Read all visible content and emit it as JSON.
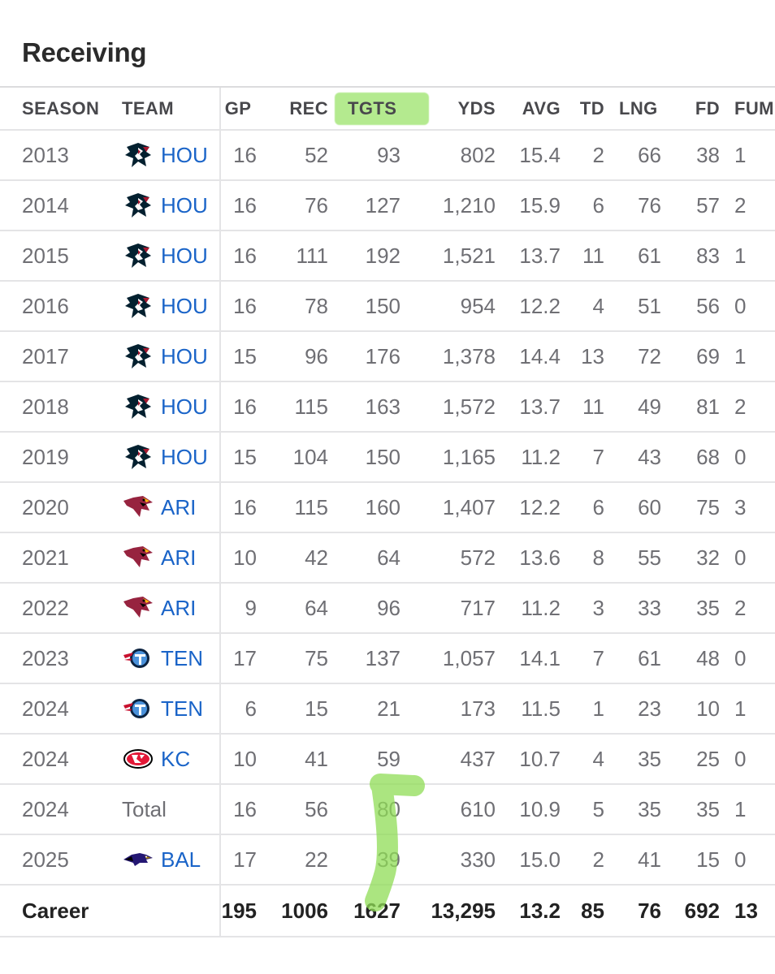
{
  "section_title": "Receiving",
  "columns": [
    "SEASON",
    "TEAM",
    "GP",
    "REC",
    "TGTS",
    "YDS",
    "AVG",
    "TD",
    "LNG",
    "FD",
    "FUM"
  ],
  "highlight_color": "#9be36a",
  "team_link_color": "#1a64c8",
  "rows": [
    {
      "season": "2013",
      "team": "HOU",
      "logo": "texans-logo",
      "gp": "16",
      "rec": "52",
      "tgts": "93",
      "yds": "802",
      "avg": "15.4",
      "td": "2",
      "lng": "66",
      "fd": "38",
      "fum": "1"
    },
    {
      "season": "2014",
      "team": "HOU",
      "logo": "texans-logo",
      "gp": "16",
      "rec": "76",
      "tgts": "127",
      "yds": "1,210",
      "avg": "15.9",
      "td": "6",
      "lng": "76",
      "fd": "57",
      "fum": "2"
    },
    {
      "season": "2015",
      "team": "HOU",
      "logo": "texans-logo",
      "gp": "16",
      "rec": "111",
      "tgts": "192",
      "yds": "1,521",
      "avg": "13.7",
      "td": "11",
      "lng": "61",
      "fd": "83",
      "fum": "1"
    },
    {
      "season": "2016",
      "team": "HOU",
      "logo": "texans-logo",
      "gp": "16",
      "rec": "78",
      "tgts": "150",
      "yds": "954",
      "avg": "12.2",
      "td": "4",
      "lng": "51",
      "fd": "56",
      "fum": "0"
    },
    {
      "season": "2017",
      "team": "HOU",
      "logo": "texans-logo",
      "gp": "15",
      "rec": "96",
      "tgts": "176",
      "yds": "1,378",
      "avg": "14.4",
      "td": "13",
      "lng": "72",
      "fd": "69",
      "fum": "1"
    },
    {
      "season": "2018",
      "team": "HOU",
      "logo": "texans-logo",
      "gp": "16",
      "rec": "115",
      "tgts": "163",
      "yds": "1,572",
      "avg": "13.7",
      "td": "11",
      "lng": "49",
      "fd": "81",
      "fum": "2"
    },
    {
      "season": "2019",
      "team": "HOU",
      "logo": "texans-logo",
      "gp": "15",
      "rec": "104",
      "tgts": "150",
      "yds": "1,165",
      "avg": "11.2",
      "td": "7",
      "lng": "43",
      "fd": "68",
      "fum": "0"
    },
    {
      "season": "2020",
      "team": "ARI",
      "logo": "cardinals-logo",
      "gp": "16",
      "rec": "115",
      "tgts": "160",
      "yds": "1,407",
      "avg": "12.2",
      "td": "6",
      "lng": "60",
      "fd": "75",
      "fum": "3"
    },
    {
      "season": "2021",
      "team": "ARI",
      "logo": "cardinals-logo",
      "gp": "10",
      "rec": "42",
      "tgts": "64",
      "yds": "572",
      "avg": "13.6",
      "td": "8",
      "lng": "55",
      "fd": "32",
      "fum": "0"
    },
    {
      "season": "2022",
      "team": "ARI",
      "logo": "cardinals-logo",
      "gp": "9",
      "rec": "64",
      "tgts": "96",
      "yds": "717",
      "avg": "11.2",
      "td": "3",
      "lng": "33",
      "fd": "35",
      "fum": "2"
    },
    {
      "season": "2023",
      "team": "TEN",
      "logo": "titans-logo",
      "gp": "17",
      "rec": "75",
      "tgts": "137",
      "yds": "1,057",
      "avg": "14.1",
      "td": "7",
      "lng": "61",
      "fd": "48",
      "fum": "0"
    },
    {
      "season": "2024",
      "team": "TEN",
      "logo": "titans-logo",
      "gp": "6",
      "rec": "15",
      "tgts": "21",
      "yds": "173",
      "avg": "11.5",
      "td": "1",
      "lng": "23",
      "fd": "10",
      "fum": "1"
    },
    {
      "season": "2024",
      "team": "KC",
      "logo": "chiefs-logo",
      "gp": "10",
      "rec": "41",
      "tgts": "59",
      "yds": "437",
      "avg": "10.7",
      "td": "4",
      "lng": "35",
      "fd": "25",
      "fum": "0"
    },
    {
      "season": "2024",
      "team": "Total",
      "logo": "",
      "gp": "16",
      "rec": "56",
      "tgts": "80",
      "yds": "610",
      "avg": "10.9",
      "td": "5",
      "lng": "35",
      "fd": "35",
      "fum": "1"
    },
    {
      "season": "2025",
      "team": "BAL",
      "logo": "ravens-logo",
      "gp": "17",
      "rec": "22",
      "tgts": "39",
      "yds": "330",
      "avg": "15.0",
      "td": "2",
      "lng": "41",
      "fd": "15",
      "fum": "0"
    }
  ],
  "career": {
    "label": "Career",
    "gp": "195",
    "rec": "1006",
    "tgts": "1627",
    "yds": "13,295",
    "avg": "13.2",
    "td": "85",
    "lng": "76",
    "fd": "692",
    "fum": "13"
  }
}
